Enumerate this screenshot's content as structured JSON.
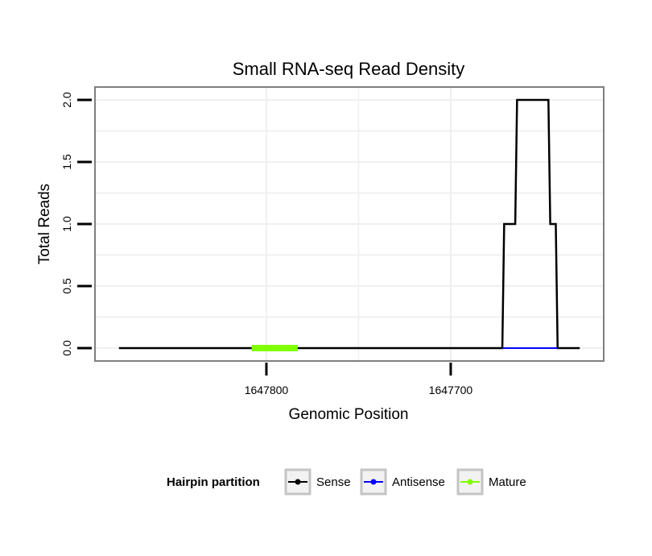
{
  "chart_data": {
    "type": "line",
    "title": "Small RNA-seq Read Density",
    "xlabel": "Genomic Position",
    "ylabel": "Total Reads",
    "x_reversed": true,
    "xlim": [
      1647893,
      1647617
    ],
    "ylim": [
      0,
      2
    ],
    "x_ticks": [
      1647800,
      1647700
    ],
    "x_tick_labels": [
      "1647800",
      "1647700"
    ],
    "y_ticks": [
      0,
      0.5,
      1,
      1.5,
      2
    ],
    "y_tick_labels": [
      "0.0",
      "0.5",
      "1.0",
      "1.5",
      "2.0"
    ],
    "grid": true,
    "series": [
      {
        "name": "Sense",
        "color": "#000000",
        "x": [
          1647880,
          1647672,
          1647671,
          1647665,
          1647664,
          1647647,
          1647646,
          1647643,
          1647642,
          1647630
        ],
        "values": [
          0,
          0,
          1,
          1,
          2,
          2,
          1,
          1,
          0,
          0
        ]
      },
      {
        "name": "Antisense",
        "color": "#0000ff",
        "x": [
          1647672,
          1647642
        ],
        "values": [
          0,
          0
        ]
      },
      {
        "name": "Mature",
        "color": "#7fff00",
        "x": [
          1647808,
          1647783
        ],
        "values": [
          0,
          0
        ]
      }
    ],
    "legend": {
      "title": "Hairpin partition",
      "position": "bottom",
      "items": [
        "Sense",
        "Antisense",
        "Mature"
      ]
    }
  }
}
